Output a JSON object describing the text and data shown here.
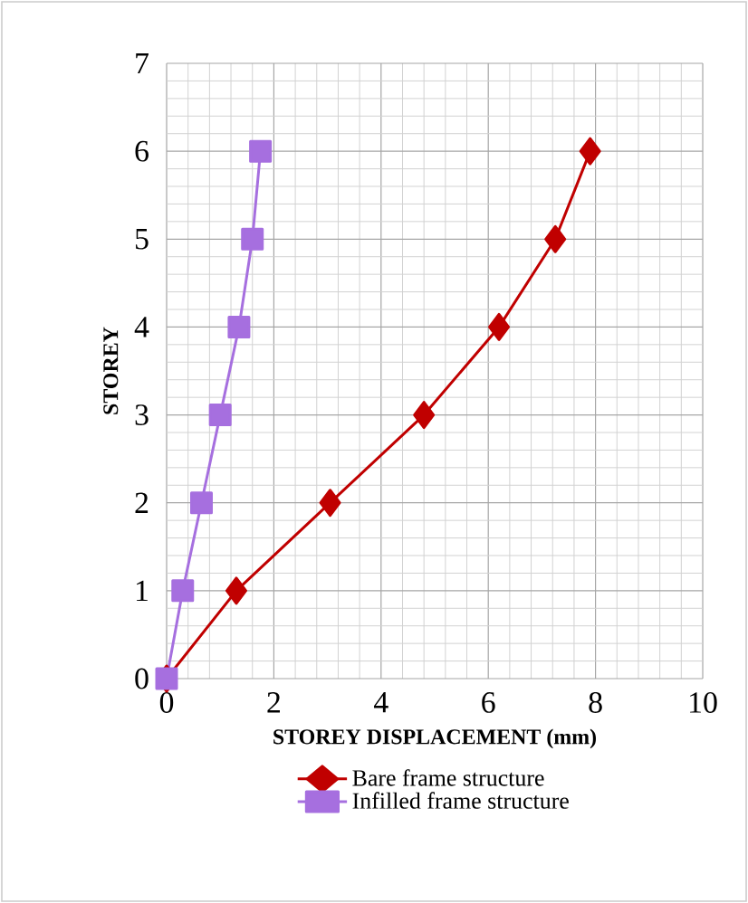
{
  "chart_data": {
    "type": "line",
    "xlabel": "STOREY  DISPLACEMENT (mm)",
    "ylabel": "STOREY",
    "xlim": [
      0,
      10
    ],
    "xticks": [
      0,
      2,
      4,
      6,
      8,
      10
    ],
    "ylim": [
      0,
      7
    ],
    "yticks": [
      0,
      1,
      2,
      3,
      4,
      5,
      6,
      7
    ],
    "grid": true,
    "legend": "bottom",
    "series": [
      {
        "name": "Bare frame structure",
        "color": "#c00000",
        "marker": "diamond",
        "x": [
          0,
          1.3,
          3.05,
          4.8,
          6.2,
          7.25,
          7.9
        ],
        "values": [
          0,
          1,
          2,
          3,
          4,
          5,
          6
        ]
      },
      {
        "name": "Infilled frame structure",
        "color": "#a66fdf",
        "marker": "square",
        "x": [
          0,
          0.3,
          0.65,
          1.0,
          1.35,
          1.6,
          1.75
        ],
        "values": [
          0,
          1,
          2,
          3,
          4,
          5,
          6
        ]
      }
    ]
  }
}
